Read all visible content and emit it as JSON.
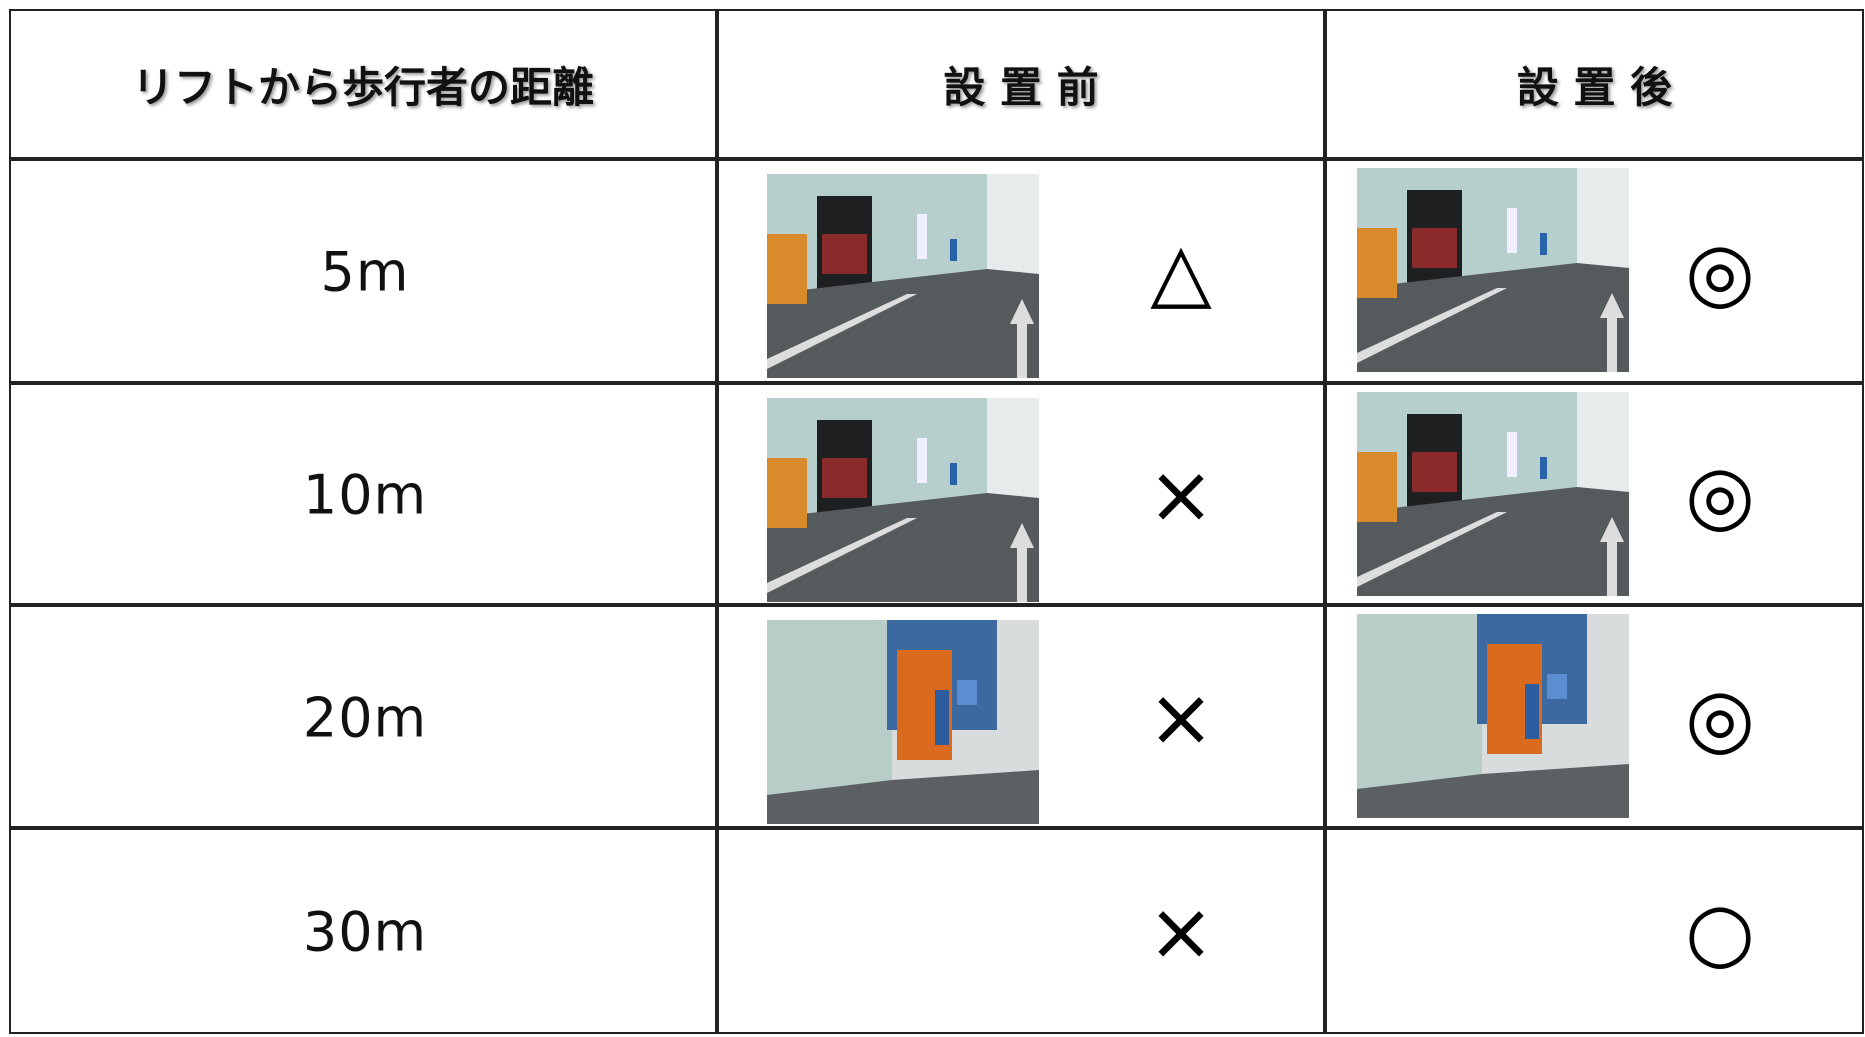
{
  "header": [
    "リフトから歩行者の距離",
    "設 置 前",
    "設 置 後"
  ],
  "rows": [
    {
      "distance": "5m",
      "before": "△",
      "after": "◎"
    },
    {
      "distance": "10m",
      "before": "×",
      "after": "◎"
    },
    {
      "distance": "20m",
      "before": "×",
      "after": "◎"
    },
    {
      "distance": "30m",
      "before": "×",
      "after": "○"
    }
  ]
}
